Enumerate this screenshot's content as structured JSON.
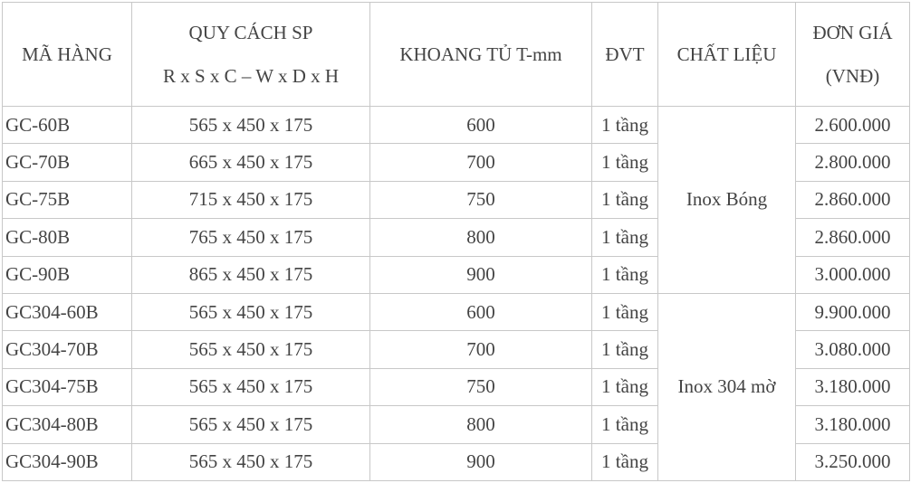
{
  "table": {
    "headers": {
      "code": "MÃ HÀNG",
      "spec_line1": "QUY CÁCH SP",
      "spec_line2": "R x S x C – W x D x H",
      "cabinet": "KHOANG TỦ T-mm",
      "unit": "ĐVT",
      "material": "CHẤT LIỆU",
      "price_line1": "ĐƠN GIÁ",
      "price_line2": "(VNĐ)"
    },
    "rows": [
      {
        "code": "GC-60B",
        "spec": "565 x 450 x 175",
        "cabinet": "600",
        "unit": "1 tầng",
        "price": "2.600.000"
      },
      {
        "code": "GC-70B",
        "spec": "665 x 450 x 175",
        "cabinet": "700",
        "unit": "1 tầng",
        "price": "2.800.000"
      },
      {
        "code": "GC-75B",
        "spec": "715 x 450 x 175",
        "cabinet": "750",
        "unit": "1 tầng",
        "price": "2.860.000"
      },
      {
        "code": "GC-80B",
        "spec": "765 x 450 x 175",
        "cabinet": "800",
        "unit": "1 tầng",
        "price": "2.860.000"
      },
      {
        "code": "GC-90B",
        "spec": "865 x 450 x 175",
        "cabinet": "900",
        "unit": "1 tầng",
        "price": "3.000.000"
      },
      {
        "code": "GC304-60B",
        "spec": "565 x 450 x 175",
        "cabinet": "600",
        "unit": "1 tầng",
        "price": "9.900.000"
      },
      {
        "code": "GC304-70B",
        "spec": "565 x 450 x 175",
        "cabinet": "700",
        "unit": "1 tầng",
        "price": "3.080.000"
      },
      {
        "code": "GC304-75B",
        "spec": "565 x 450 x 175",
        "cabinet": "750",
        "unit": "1 tầng",
        "price": "3.180.000"
      },
      {
        "code": "GC304-80B",
        "spec": "565 x 450 x 175",
        "cabinet": "800",
        "unit": "1 tầng",
        "price": "3.180.000"
      },
      {
        "code": "GC304-90B",
        "spec": "565 x 450 x 175",
        "cabinet": "900",
        "unit": "1 tầng",
        "price": "3.250.000"
      }
    ],
    "materials": [
      {
        "label": "Inox Bóng"
      },
      {
        "label": "Inox 304 mờ"
      }
    ]
  }
}
